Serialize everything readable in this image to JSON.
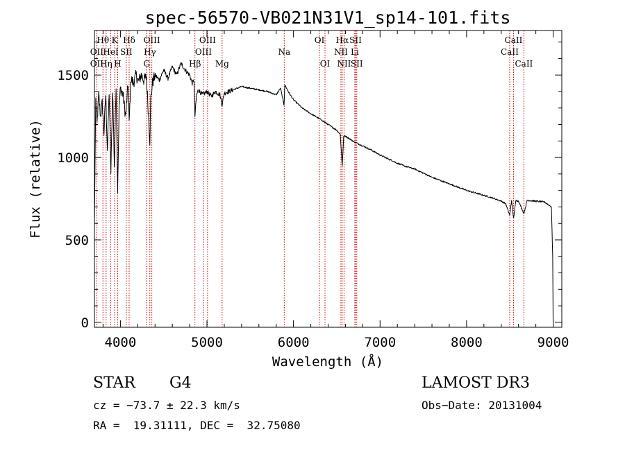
{
  "chart_data": {
    "type": "line",
    "title": "spec-56570-VB021N31V1_sp14-101.fits",
    "xlabel": "Wavelength (Å)",
    "ylabel": "Flux (relative)",
    "xlim": [
      3700,
      9100
    ],
    "ylim": [
      -30,
      1770
    ],
    "xticks": [
      4000,
      5000,
      6000,
      7000,
      8000,
      9000
    ],
    "yticks": [
      0,
      500,
      1000,
      1500
    ],
    "spectrum": {
      "x": [
        3700,
        3715,
        3730,
        3750,
        3770,
        3790,
        3810,
        3830,
        3850,
        3870,
        3890,
        3910,
        3930,
        3950,
        3968,
        3985,
        4000,
        4030,
        4060,
        4090,
        4101,
        4120,
        4150,
        4180,
        4210,
        4240,
        4270,
        4300,
        4320,
        4340,
        4350,
        4370,
        4400,
        4450,
        4500,
        4550,
        4600,
        4650,
        4700,
        4750,
        4800,
        4830,
        4850,
        4861,
        4880,
        4900,
        4950,
        5000,
        5050,
        5100,
        5150,
        5175,
        5200,
        5300,
        5400,
        5500,
        5600,
        5700,
        5800,
        5850,
        5890,
        5900,
        5920,
        5950,
        6000,
        6100,
        6200,
        6300,
        6400,
        6500,
        6540,
        6563,
        6580,
        6600,
        6700,
        6800,
        6900,
        7000,
        7100,
        7200,
        7300,
        7400,
        7500,
        7600,
        7700,
        7800,
        7900,
        8000,
        8100,
        8200,
        8300,
        8400,
        8450,
        8498,
        8520,
        8542,
        8570,
        8600,
        8662,
        8700,
        8800,
        8900,
        8980,
        8995,
        9000
      ],
      "y": [
        600,
        1350,
        1200,
        1380,
        1250,
        1330,
        1150,
        1380,
        1050,
        1400,
        900,
        1420,
        950,
        1450,
        800,
        1300,
        1420,
        1380,
        1250,
        1450,
        1200,
        1480,
        1450,
        1500,
        1460,
        1500,
        1470,
        1490,
        1300,
        1100,
        1350,
        1450,
        1500,
        1470,
        1530,
        1480,
        1550,
        1500,
        1570,
        1530,
        1500,
        1450,
        1470,
        1250,
        1380,
        1410,
        1380,
        1400,
        1370,
        1400,
        1380,
        1320,
        1390,
        1410,
        1430,
        1420,
        1410,
        1400,
        1380,
        1420,
        1320,
        1440,
        1420,
        1390,
        1350,
        1300,
        1265,
        1235,
        1200,
        1165,
        1140,
        950,
        1125,
        1130,
        1095,
        1070,
        1045,
        1015,
        990,
        965,
        945,
        930,
        905,
        880,
        860,
        840,
        820,
        800,
        785,
        770,
        755,
        735,
        720,
        650,
        740,
        630,
        740,
        735,
        660,
        740,
        735,
        730,
        700,
        400,
        0
      ]
    },
    "spectral_lines": [
      {
        "label": "OII",
        "wl": 3727,
        "row": 2
      },
      {
        "label": "OII",
        "wl": 3727,
        "row": 3
      },
      {
        "label": "Hθ",
        "wl": 3798,
        "row": 1
      },
      {
        "label": "HeI",
        "wl": 3889,
        "row": 2
      },
      {
        "label": "K",
        "wl": 3934,
        "row": 1
      },
      {
        "label": "Hη",
        "wl": 3835,
        "row": 3
      },
      {
        "label": "H",
        "wl": 3969,
        "row": 3
      },
      {
        "label": "SII",
        "wl": 4068,
        "row": 2
      },
      {
        "label": "Hδ",
        "wl": 4101,
        "row": 1
      },
      {
        "label": "OIII",
        "wl": 4363,
        "row": 1
      },
      {
        "label": "Hγ",
        "wl": 4340,
        "row": 2
      },
      {
        "label": "G",
        "wl": 4304,
        "row": 3
      },
      {
        "label": "Hβ",
        "wl": 4861,
        "row": 3
      },
      {
        "label": "OIII",
        "wl": 4959,
        "row": 2
      },
      {
        "label": "OIII",
        "wl": 5007,
        "row": 1
      },
      {
        "label": "Mg",
        "wl": 5175,
        "row": 3
      },
      {
        "label": "Na",
        "wl": 5893,
        "row": 2
      },
      {
        "label": "OI",
        "wl": 6300,
        "row": 1
      },
      {
        "label": "OI",
        "wl": 6364,
        "row": 3
      },
      {
        "label": "Hα",
        "wl": 6563,
        "row": 1
      },
      {
        "label": "NII",
        "wl": 6548,
        "row": 2
      },
      {
        "label": "NII",
        "wl": 6584,
        "row": 3
      },
      {
        "label": "SII",
        "wl": 6717,
        "row": 1
      },
      {
        "label": "Li",
        "wl": 6708,
        "row": 2
      },
      {
        "label": "SII",
        "wl": 6731,
        "row": 3
      },
      {
        "label": "CaII",
        "wl": 8542,
        "row": 1
      },
      {
        "label": "CaII",
        "wl": 8498,
        "row": 2
      },
      {
        "label": "CaII",
        "wl": 8662,
        "row": 3
      }
    ]
  },
  "info": {
    "class": "STAR",
    "subclass": "G4",
    "survey": "LAMOST DR3",
    "cz": "cz = −73.7 ± 22.3 km/s",
    "obs_date": "Obs−Date: 20131004",
    "radec": "RA =  19.31111, DEC =  32.75080"
  },
  "colors": {
    "spectrum": "#000000",
    "line_markers": "#cc0000",
    "frame": "#000000"
  }
}
